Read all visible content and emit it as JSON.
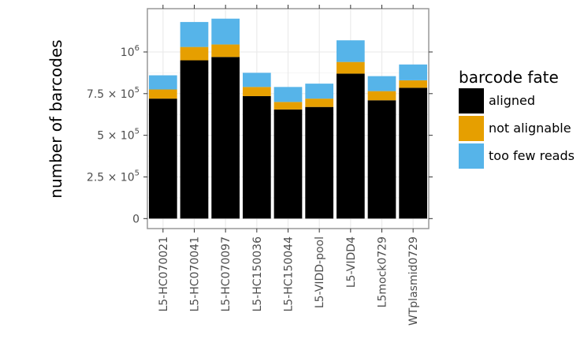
{
  "chart_data": {
    "type": "bar",
    "stacked": true,
    "categories": [
      "L5-HC070021",
      "L5-HC070041",
      "L5-HC070097",
      "L5-HC150036",
      "L5-HC150044",
      "L5-VIDD-pool",
      "L5-VIDD4",
      "L5mock0729",
      "WTplasmid0729"
    ],
    "series": [
      {
        "name": "aligned",
        "color": "#000000",
        "values": [
          720000,
          950000,
          970000,
          735000,
          655000,
          670000,
          870000,
          710000,
          785000
        ]
      },
      {
        "name": "not alignable",
        "color": "#E69F00",
        "values": [
          55000,
          80000,
          75000,
          55000,
          45000,
          50000,
          70000,
          55000,
          45000
        ]
      },
      {
        "name": "too few reads",
        "color": "#56B4E9",
        "values": [
          85000,
          150000,
          155000,
          85000,
          90000,
          90000,
          130000,
          90000,
          95000
        ]
      }
    ],
    "xlabel": "",
    "ylabel": "number of barcodes",
    "ylim": [
      -60000,
      1260000
    ],
    "yticks": [
      {
        "value": 0,
        "base": "0",
        "exp": ""
      },
      {
        "value": 250000,
        "base": "2.5 × 10",
        "exp": "5"
      },
      {
        "value": 500000,
        "base": "5 × 10",
        "exp": "5"
      },
      {
        "value": 750000,
        "base": "7.5 × 10",
        "exp": "5"
      },
      {
        "value": 1000000,
        "base": "10",
        "exp": "6"
      }
    ],
    "legend": {
      "title": "barcode fate",
      "position": "right"
    },
    "grid": true,
    "background": "#ffffff",
    "grid_color": "#ebebeb",
    "panel_border_color": "#999999"
  }
}
